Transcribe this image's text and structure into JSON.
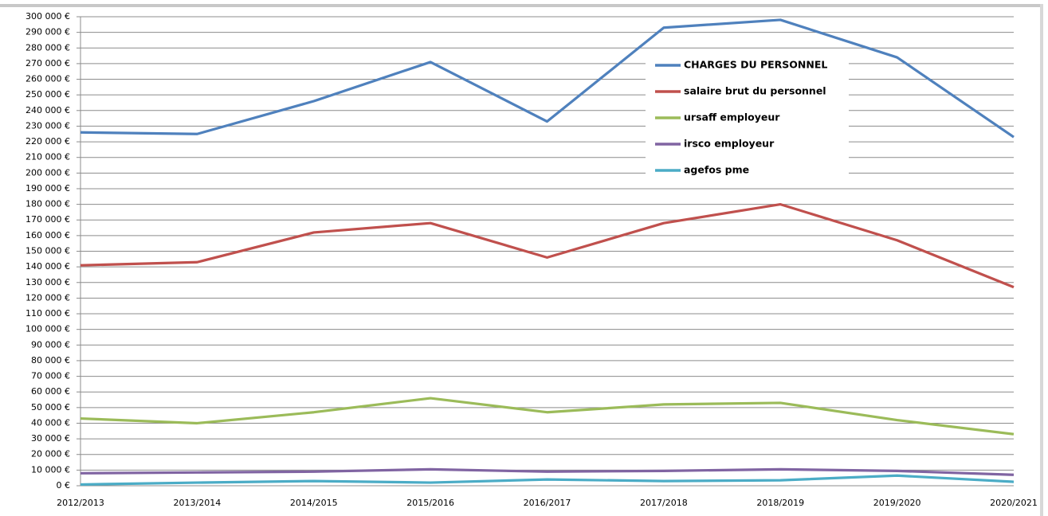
{
  "chart_data": {
    "type": "line",
    "categories": [
      "2012/2013",
      "2013/2014",
      "2014/2015",
      "2015/2016",
      "2016/2017",
      "2017/2018",
      "2018/2019",
      "2019/2020",
      "2020/2021"
    ],
    "series": [
      {
        "name": "CHARGES DU PERSONNEL",
        "color": "#4f81bd",
        "values": [
          226000,
          225000,
          246000,
          271000,
          233000,
          293000,
          298000,
          274000,
          223000
        ]
      },
      {
        "name": "salaire brut du personnel",
        "color": "#c0504d",
        "values": [
          141000,
          143000,
          162000,
          168000,
          146000,
          168000,
          180000,
          157000,
          127000
        ]
      },
      {
        "name": "ursaff employeur",
        "color": "#9bbb59",
        "values": [
          43000,
          40000,
          47000,
          56000,
          47000,
          52000,
          53000,
          42000,
          33000
        ]
      },
      {
        "name": "irsco employeur",
        "color": "#8064a2",
        "values": [
          8000,
          8500,
          9000,
          10500,
          9000,
          9500,
          10500,
          9500,
          7000
        ]
      },
      {
        "name": "agefos pme",
        "color": "#4bacc6",
        "values": [
          800,
          2000,
          3000,
          2000,
          4000,
          3000,
          3500,
          6500,
          2500
        ]
      }
    ],
    "ylim": [
      0,
      300000
    ],
    "yticks": [
      {
        "value": 0,
        "label": "0 €"
      },
      {
        "value": 10000,
        "label": "10 000 €"
      },
      {
        "value": 20000,
        "label": "20 000 €"
      },
      {
        "value": 30000,
        "label": "30 000 €"
      },
      {
        "value": 40000,
        "label": "40 000 €"
      },
      {
        "value": 50000,
        "label": "50 000 €"
      },
      {
        "value": 60000,
        "label": "60 000 €"
      },
      {
        "value": 70000,
        "label": "70 000 €"
      },
      {
        "value": 80000,
        "label": "80 000 €"
      },
      {
        "value": 90000,
        "label": "90 000 €"
      },
      {
        "value": 100000,
        "label": "100 000 €"
      },
      {
        "value": 110000,
        "label": "110 000 €"
      },
      {
        "value": 120000,
        "label": "120 000 €"
      },
      {
        "value": 130000,
        "label": "130 000 €"
      },
      {
        "value": 140000,
        "label": "140 000 €"
      },
      {
        "value": 150000,
        "label": "150 000 €"
      },
      {
        "value": 160000,
        "label": "160 000 €"
      },
      {
        "value": 170000,
        "label": "170 000 €"
      },
      {
        "value": 180000,
        "label": "180 000 €"
      },
      {
        "value": 190000,
        "label": "190 000 €"
      },
      {
        "value": 200000,
        "label": "200 000 €"
      },
      {
        "value": 210000,
        "label": "210 000 €"
      },
      {
        "value": 220000,
        "label": "220 000 €"
      },
      {
        "value": 230000,
        "label": "230 000 €"
      },
      {
        "value": 240000,
        "label": "240 000 €"
      },
      {
        "value": 250000,
        "label": "250 000 €"
      },
      {
        "value": 260000,
        "label": "260 000 €"
      },
      {
        "value": 270000,
        "label": "270 000 €"
      },
      {
        "value": 280000,
        "label": "280 000 €"
      },
      {
        "value": 290000,
        "label": "290 000 €"
      },
      {
        "value": 300000,
        "label": "300 000 €"
      }
    ],
    "grid": true,
    "legend": "upper right"
  }
}
